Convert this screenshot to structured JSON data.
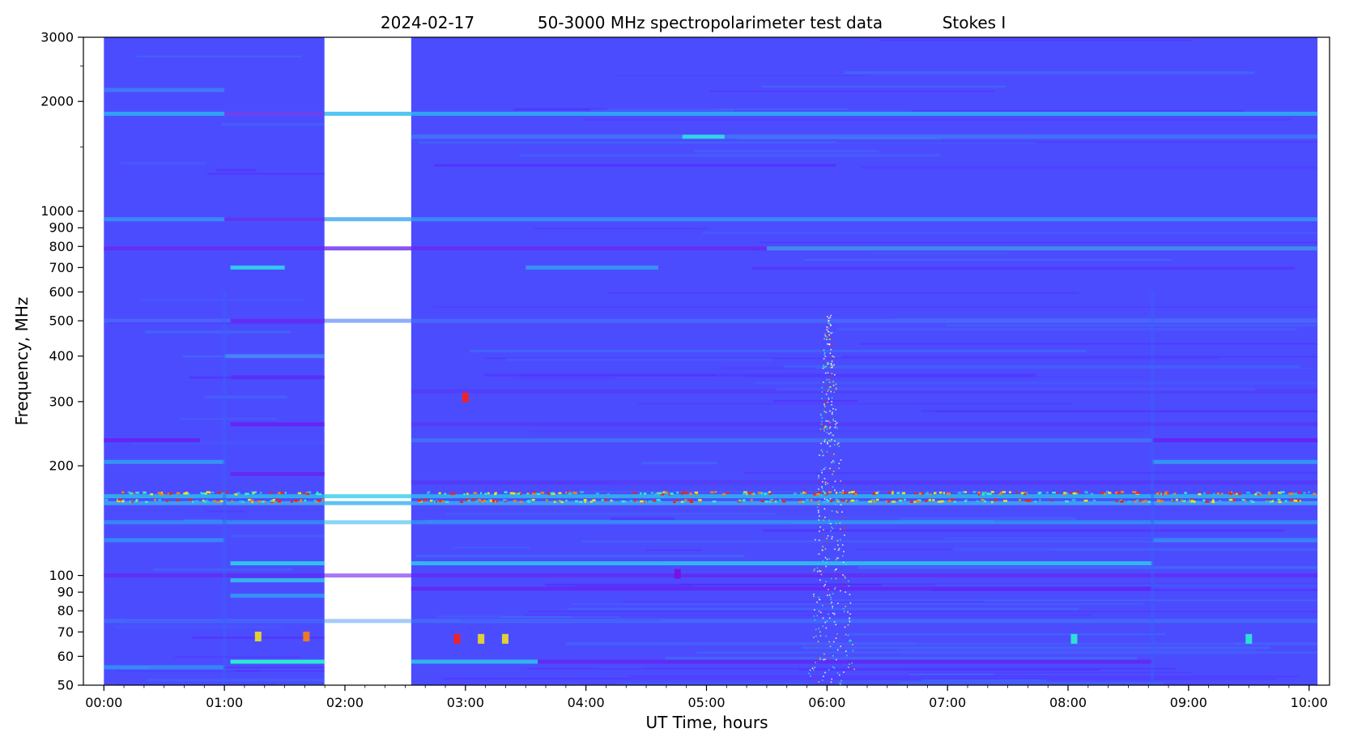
{
  "chart_data": {
    "type": "heatmap",
    "title": {
      "date": "2024-02-17",
      "description": "50-3000 MHz spectropolarimeter test data",
      "stokes": "Stokes I"
    },
    "xlabel": "UT Time, hours",
    "ylabel": "Frequency, MHz",
    "xlim_hours": [
      -0.17,
      10.17
    ],
    "ylim_mhz": [
      50,
      3000
    ],
    "y_scale": "log",
    "x_ticks": [
      {
        "value": 0,
        "label": "00:00"
      },
      {
        "value": 1,
        "label": "01:00"
      },
      {
        "value": 2,
        "label": "02:00"
      },
      {
        "value": 3,
        "label": "03:00"
      },
      {
        "value": 4,
        "label": "04:00"
      },
      {
        "value": 5,
        "label": "05:00"
      },
      {
        "value": 6,
        "label": "06:00"
      },
      {
        "value": 7,
        "label": "07:00"
      },
      {
        "value": 8,
        "label": "08:00"
      },
      {
        "value": 9,
        "label": "09:00"
      },
      {
        "value": 10,
        "label": "10:00"
      }
    ],
    "y_ticks": [
      {
        "value": 50,
        "label": "50"
      },
      {
        "value": 60,
        "label": "60"
      },
      {
        "value": 70,
        "label": "70"
      },
      {
        "value": 80,
        "label": "80"
      },
      {
        "value": 90,
        "label": "90"
      },
      {
        "value": 100,
        "label": "100"
      },
      {
        "value": 200,
        "label": "200"
      },
      {
        "value": 300,
        "label": "300"
      },
      {
        "value": 400,
        "label": "400"
      },
      {
        "value": 500,
        "label": "500"
      },
      {
        "value": 600,
        "label": "600"
      },
      {
        "value": 700,
        "label": "700"
      },
      {
        "value": 800,
        "label": "800"
      },
      {
        "value": 900,
        "label": "900"
      },
      {
        "value": 1000,
        "label": "1000"
      },
      {
        "value": 2000,
        "label": "2000"
      },
      {
        "value": 3000,
        "label": "3000"
      }
    ],
    "y_minor_ticks": [
      1500,
      2500
    ],
    "data_segments": [
      {
        "start_h": 0.0,
        "end_h": 1.83
      },
      {
        "start_h": 2.55,
        "end_h": 10.07
      }
    ],
    "data_gap": {
      "start_h": 1.83,
      "end_h": 2.55
    },
    "colormap": {
      "background": "#4c4cff",
      "low": "#5a1eff",
      "mid": "#24b8f0",
      "high": "#2ef0d0",
      "peak": "#ff2010"
    },
    "bands": [
      {
        "f_mhz": 2150,
        "t0": 0.0,
        "t1": 1.0,
        "color": "#3f8cf5",
        "opacity": 0.7
      },
      {
        "f_mhz": 1850,
        "t0": 0.0,
        "t1": 10.07,
        "color": "#2ab8f0",
        "opacity": 0.8
      },
      {
        "f_mhz": 1850,
        "t0": 1.0,
        "t1": 1.83,
        "color": "#7a2af0",
        "opacity": 0.8
      },
      {
        "f_mhz": 1600,
        "t0": 2.55,
        "t1": 10.07,
        "color": "#3a90f2",
        "opacity": 0.55
      },
      {
        "f_mhz": 1600,
        "t0": 4.8,
        "t1": 5.15,
        "color": "#30e0e0",
        "opacity": 0.9
      },
      {
        "f_mhz": 950,
        "t0": 0.0,
        "t1": 10.07,
        "color": "#2fa0f0",
        "opacity": 0.75
      },
      {
        "f_mhz": 950,
        "t0": 1.0,
        "t1": 1.83,
        "color": "#6a20f0",
        "opacity": 0.8
      },
      {
        "f_mhz": 790,
        "t0": 0.0,
        "t1": 10.07,
        "color": "#6a28f0",
        "opacity": 0.8
      },
      {
        "f_mhz": 790,
        "t0": 5.5,
        "t1": 10.07,
        "color": "#2ac8e8",
        "opacity": 0.6
      },
      {
        "f_mhz": 700,
        "t0": 1.05,
        "t1": 1.5,
        "color": "#2fd8e8",
        "opacity": 0.9
      },
      {
        "f_mhz": 700,
        "t0": 3.5,
        "t1": 4.6,
        "color": "#2fb0f0",
        "opacity": 0.7
      },
      {
        "f_mhz": 500,
        "t0": 0.0,
        "t1": 10.07,
        "color": "#4878f8",
        "opacity": 0.6
      },
      {
        "f_mhz": 500,
        "t0": 1.05,
        "t1": 1.83,
        "color": "#6a22f0",
        "opacity": 0.8
      },
      {
        "f_mhz": 400,
        "t0": 1.0,
        "t1": 1.83,
        "color": "#4aa0f0",
        "opacity": 0.6
      },
      {
        "f_mhz": 350,
        "t0": 1.05,
        "t1": 1.83,
        "color": "#5a2ef2",
        "opacity": 0.75
      },
      {
        "f_mhz": 320,
        "t0": 2.55,
        "t1": 10.07,
        "color": "#5a30f4",
        "opacity": 0.45
      },
      {
        "f_mhz": 260,
        "t0": 1.05,
        "t1": 1.83,
        "color": "#6a20f0",
        "opacity": 0.85
      },
      {
        "f_mhz": 260,
        "t0": 2.55,
        "t1": 10.07,
        "color": "#5a2ef4",
        "opacity": 0.5
      },
      {
        "f_mhz": 235,
        "t0": 0.0,
        "t1": 0.8,
        "color": "#6a20f0",
        "opacity": 0.85
      },
      {
        "f_mhz": 235,
        "t0": 8.7,
        "t1": 10.07,
        "color": "#6a20f0",
        "opacity": 0.85
      },
      {
        "f_mhz": 235,
        "t0": 2.55,
        "t1": 8.7,
        "color": "#3e8ef4",
        "opacity": 0.5
      },
      {
        "f_mhz": 205,
        "t0": 0.0,
        "t1": 1.0,
        "color": "#2ab4f0",
        "opacity": 0.7
      },
      {
        "f_mhz": 205,
        "t0": 8.7,
        "t1": 10.07,
        "color": "#2ab4f0",
        "opacity": 0.7
      },
      {
        "f_mhz": 190,
        "t0": 1.05,
        "t1": 1.83,
        "color": "#6a20f0",
        "opacity": 0.8
      },
      {
        "f_mhz": 180,
        "t0": 2.55,
        "t1": 10.07,
        "color": "#5a30f4",
        "opacity": 0.55
      },
      {
        "f_mhz": 165,
        "t0": 0.0,
        "t1": 10.07,
        "color": "#2ac8e8",
        "opacity": 0.75
      },
      {
        "f_mhz": 158,
        "t0": 0.0,
        "t1": 10.07,
        "color": "#3ab0f0",
        "opacity": 0.8
      },
      {
        "f_mhz": 140,
        "t0": 0.0,
        "t1": 10.07,
        "color": "#2ab0f0",
        "opacity": 0.55
      },
      {
        "f_mhz": 125,
        "t0": 0.0,
        "t1": 1.0,
        "color": "#2ab0f0",
        "opacity": 0.6
      },
      {
        "f_mhz": 125,
        "t0": 8.7,
        "t1": 10.07,
        "color": "#2ab0f0",
        "opacity": 0.5
      },
      {
        "f_mhz": 108,
        "t0": 1.05,
        "t1": 1.83,
        "color": "#2ad8e8",
        "opacity": 0.85
      },
      {
        "f_mhz": 108,
        "t0": 2.55,
        "t1": 8.7,
        "color": "#2ad8e8",
        "opacity": 0.75
      },
      {
        "f_mhz": 100,
        "t0": 0.0,
        "t1": 10.07,
        "color": "#6a20f0",
        "opacity": 0.6
      },
      {
        "f_mhz": 97,
        "t0": 1.05,
        "t1": 1.83,
        "color": "#2ae0e0",
        "opacity": 0.7
      },
      {
        "f_mhz": 92,
        "t0": 2.55,
        "t1": 8.7,
        "color": "#6a20f0",
        "opacity": 0.7
      },
      {
        "f_mhz": 88,
        "t0": 1.05,
        "t1": 1.83,
        "color": "#2ac0ec",
        "opacity": 0.6
      },
      {
        "f_mhz": 75,
        "t0": 0.0,
        "t1": 10.07,
        "color": "#3a8cf4",
        "opacity": 0.45
      },
      {
        "f_mhz": 58,
        "t0": 1.05,
        "t1": 1.83,
        "color": "#2af0d0",
        "opacity": 0.95
      },
      {
        "f_mhz": 58,
        "t0": 2.55,
        "t1": 3.6,
        "color": "#2ad0e8",
        "opacity": 0.8
      },
      {
        "f_mhz": 58,
        "t0": 3.6,
        "t1": 8.7,
        "color": "#6a20f0",
        "opacity": 0.7
      },
      {
        "f_mhz": 56,
        "t0": 0.0,
        "t1": 1.0,
        "color": "#2ab0f0",
        "opacity": 0.6
      }
    ],
    "rfi_bands": [
      {
        "f_mhz": 168,
        "t0": 0.0,
        "t1": 10.07
      },
      {
        "f_mhz": 160,
        "t0": 0.0,
        "t1": 10.07
      }
    ],
    "burst": {
      "t_h": 6.0,
      "f_low_mhz": 50,
      "f_high_mhz": 520
    },
    "bright_spots": [
      {
        "t_h": 2.93,
        "f_mhz": 67,
        "color": "#ff2010"
      },
      {
        "t_h": 3.13,
        "f_mhz": 67,
        "color": "#f0e020"
      },
      {
        "t_h": 3.33,
        "f_mhz": 67,
        "color": "#f0e020"
      },
      {
        "t_h": 3.0,
        "f_mhz": 308,
        "color": "#ff2010"
      },
      {
        "t_h": 4.76,
        "f_mhz": 101,
        "color": "#7a10e0"
      },
      {
        "t_h": 1.28,
        "f_mhz": 68,
        "color": "#f0e020"
      },
      {
        "t_h": 1.68,
        "f_mhz": 68,
        "color": "#ff8010"
      },
      {
        "t_h": 9.5,
        "f_mhz": 67,
        "color": "#2af0d0"
      },
      {
        "t_h": 8.05,
        "f_mhz": 67,
        "color": "#2af0d0"
      }
    ]
  }
}
